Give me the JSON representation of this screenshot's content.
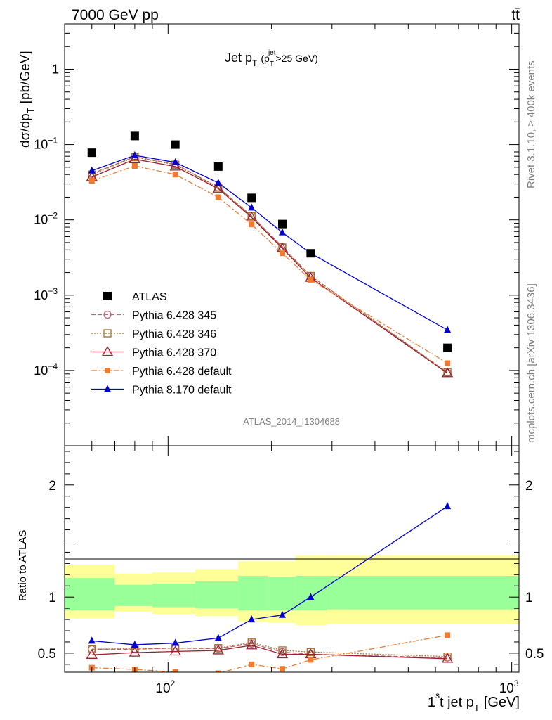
{
  "header": {
    "process": "7000 GeV pp",
    "final_state": "tt̄"
  },
  "side_notes": {
    "rivet": "Rivet 3.1.10, ≥ 400k events",
    "source": "mcplots.cern.ch [arXiv:1306.3436]"
  },
  "chart_data": [
    {
      "type": "scatter",
      "title_main": "Jet p",
      "title_sub": "T",
      "title_cut": "(p",
      "title_cut_sub": "T",
      "title_cut_sup": "jet",
      "title_cut_rest": ">25 GeV)",
      "analysis_label": "ATLAS_2014_I1304688",
      "ylabel": "dσ/dp",
      "ylabel_sub": "T",
      "ylabel_unit": "[pb/GeV]",
      "xscale": "log",
      "yscale": "log",
      "xlim": [
        50,
        1050
      ],
      "ylim": [
        1e-05,
        4
      ],
      "y_ticks": [
        {
          "value": 1,
          "mantissa": "1",
          "exp": ""
        },
        {
          "value": 0.1,
          "mantissa": "10",
          "exp": "−1"
        },
        {
          "value": 0.01,
          "mantissa": "10",
          "exp": "−2"
        },
        {
          "value": 0.001,
          "mantissa": "10",
          "exp": "−3"
        },
        {
          "value": 0.0001,
          "mantissa": "10",
          "exp": "−4"
        }
      ],
      "x": [
        60,
        80,
        105,
        140,
        175,
        215,
        260,
        650
      ],
      "series": [
        {
          "name": "ATLAS",
          "color": "#000000",
          "marker": "filled-square",
          "line": "none",
          "values": [
            0.078,
            0.13,
            0.1,
            0.051,
            0.0196,
            0.0088,
            0.0036,
            0.0002
          ]
        },
        {
          "name": "Pythia 6.428 345",
          "color": "#c06070",
          "marker": "open-circle",
          "line": "dashed",
          "values": [
            0.041,
            0.069,
            0.055,
            0.027,
            0.0113,
            0.0044,
            0.0018,
            9.3e-05
          ]
        },
        {
          "name": "Pythia 6.428 346",
          "color": "#a07030",
          "marker": "open-square",
          "line": "dotted",
          "values": [
            0.04,
            0.068,
            0.054,
            0.027,
            0.0112,
            0.0043,
            0.0018,
            9.5e-05
          ]
        },
        {
          "name": "Pythia 6.428 370",
          "color": "#991f2a",
          "marker": "open-triangle",
          "line": "solid",
          "values": [
            0.037,
            0.064,
            0.051,
            0.026,
            0.0108,
            0.0042,
            0.0017,
            9.2e-05
          ]
        },
        {
          "name": "Pythia 6.428 default",
          "color": "#f07b30",
          "marker": "filled-small-square",
          "line": "dashdot",
          "values": [
            0.033,
            0.052,
            0.04,
            0.02,
            0.0087,
            0.0036,
            0.0016,
            0.000125
          ]
        },
        {
          "name": "Pythia 8.170 default",
          "color": "#0000d0",
          "marker": "filled-triangle",
          "line": "solid",
          "values": [
            0.045,
            0.072,
            0.058,
            0.031,
            0.0145,
            0.0068,
            0.0036,
            0.000345
          ]
        }
      ]
    },
    {
      "type": "line",
      "ylabel": "Ratio to ATLAS",
      "xlabel_main": "1",
      "xlabel_sup": "s",
      "xlabel_rest": "t jet p",
      "xlabel_sub": "T",
      "xlabel_unit": "[GeV]",
      "xscale": "log",
      "xlim": [
        50,
        1050
      ],
      "ylim": [
        0.33,
        2.35
      ],
      "y_ticks": [
        {
          "value": 0.5,
          "label": "0.5"
        },
        {
          "value": 1,
          "label": "1"
        },
        {
          "value": 2,
          "label": "2"
        }
      ],
      "x_ticks": [
        {
          "value": 100,
          "mantissa": "10",
          "exp": "2"
        },
        {
          "value": 1000,
          "mantissa": "10",
          "exp": "3"
        }
      ],
      "x": [
        60,
        80,
        105,
        140,
        175,
        215,
        260,
        650
      ],
      "bands": {
        "bins": [
          50,
          70,
          90,
          120,
          160,
          195,
          235,
          290,
          1050
        ],
        "yellow_lo": [
          0.81,
          0.87,
          0.85,
          0.83,
          0.78,
          0.77,
          0.75,
          0.76
        ],
        "yellow_hi": [
          1.29,
          1.21,
          1.22,
          1.25,
          1.32,
          1.32,
          1.37,
          1.37
        ],
        "green_lo": [
          0.88,
          0.92,
          0.91,
          0.9,
          0.88,
          0.88,
          0.88,
          0.89
        ],
        "green_hi": [
          1.17,
          1.11,
          1.12,
          1.14,
          1.19,
          1.18,
          1.19,
          1.19
        ]
      },
      "series": [
        {
          "name": "Pythia 6.428 345",
          "color": "#c06070",
          "marker": "open-circle",
          "line": "dashed",
          "values": [
            0.535,
            0.535,
            0.545,
            0.54,
            0.585,
            0.51,
            0.49,
            0.46
          ]
        },
        {
          "name": "Pythia 6.428 346",
          "color": "#a07030",
          "marker": "open-square",
          "line": "dotted",
          "values": [
            0.535,
            0.54,
            0.545,
            0.545,
            0.595,
            0.525,
            0.51,
            0.47
          ]
        },
        {
          "name": "Pythia 6.428 370",
          "color": "#991f2a",
          "marker": "open-triangle",
          "line": "solid",
          "values": [
            0.485,
            0.505,
            0.515,
            0.525,
            0.57,
            0.49,
            0.49,
            0.45
          ]
        },
        {
          "name": "Pythia 6.428 default",
          "color": "#f07b30",
          "marker": "filled-small-square",
          "line": "dashdot",
          "values": [
            0.37,
            0.355,
            0.33,
            0.32,
            0.4,
            0.36,
            0.44,
            0.66
          ]
        },
        {
          "name": "Pythia 8.170 default",
          "color": "#0000d0",
          "marker": "filled-triangle",
          "line": "solid",
          "values": [
            0.61,
            0.575,
            0.59,
            0.635,
            0.8,
            0.84,
            1.0,
            1.81
          ]
        }
      ]
    }
  ]
}
